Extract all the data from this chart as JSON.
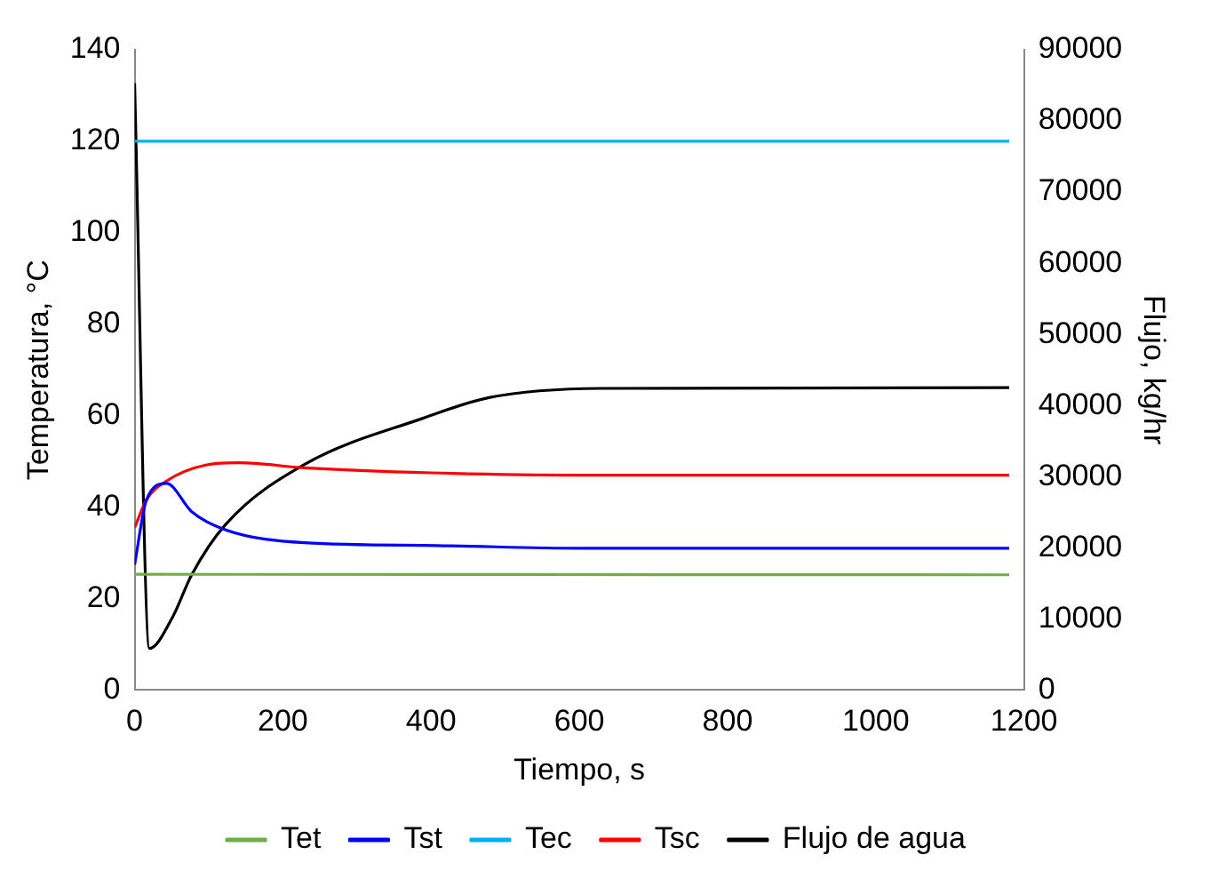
{
  "chart_data": {
    "type": "line",
    "xlabel": "Tiempo, s",
    "ylabel": "Temperatura, °C",
    "y2label": "Flujo, kg/hr",
    "xlim": [
      0,
      1200
    ],
    "xticks": [
      0,
      200,
      400,
      600,
      800,
      1000,
      1200
    ],
    "ylim": [
      0,
      140
    ],
    "yticks": [
      0,
      20,
      40,
      60,
      80,
      100,
      120,
      140
    ],
    "y2lim": [
      0,
      90000
    ],
    "y2ticks": [
      0,
      10000,
      20000,
      30000,
      40000,
      50000,
      60000,
      70000,
      80000,
      90000
    ],
    "grid": false,
    "legend": "bottom",
    "marker": "none",
    "line_style": "solid",
    "series": [
      {
        "name": "Tet",
        "color": "#70ad47",
        "x": [
          0,
          1180
        ],
        "values": [
          25.3,
          25.2
        ]
      },
      {
        "name": "Tst",
        "color": "#0000ff",
        "x": [
          0,
          16,
          43,
          77,
          123,
          229,
          407,
          600,
          1180
        ],
        "values": [
          27.4,
          41.6,
          45.2,
          39,
          35,
          32.2,
          31.6,
          31,
          31
        ]
      },
      {
        "name": "Tec",
        "color": "#00b0f0",
        "x": [
          0,
          1180
        ],
        "values": [
          120,
          120
        ]
      },
      {
        "name": "Tsc",
        "color": "#ff0000",
        "x": [
          0,
          16,
          43,
          96,
          141,
          229,
          400,
          600,
          1180
        ],
        "values": [
          35.5,
          41.6,
          45.7,
          49.2,
          49.7,
          48.6,
          47.5,
          47,
          47
        ]
      },
      {
        "name": "Flujo de agua",
        "color": "#000000",
        "axis": "y2",
        "x": [
          0,
          20,
          51,
          77,
          123,
          229,
          389,
          478,
          629,
          1180
        ],
        "values": [
          85300,
          5850,
          10200,
          16200,
          23300,
          31700,
          38200,
          41100,
          42400,
          42500
        ]
      }
    ]
  }
}
